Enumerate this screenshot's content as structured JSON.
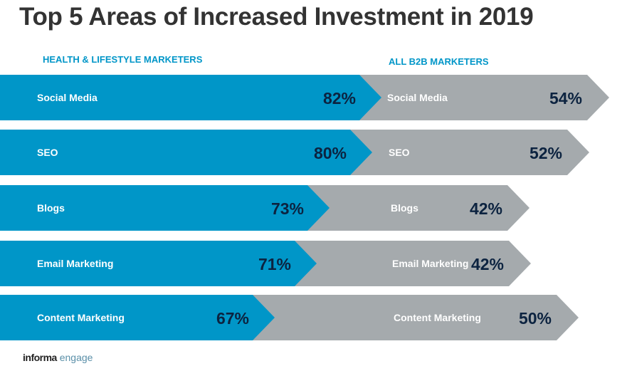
{
  "chart_data": {
    "type": "bar",
    "title": "Top 5 Areas of Increased Investment in 2019",
    "categories": [
      "Social Media",
      "SEO",
      "Blogs",
      "Email Marketing",
      "Content Marketing"
    ],
    "series": [
      {
        "name": "HEALTH & LIFESTYLE MARKETERS",
        "values": [
          82,
          80,
          73,
          71,
          67
        ],
        "color": "#0096c8"
      },
      {
        "name": "ALL B2B MARKETERS",
        "values": [
          54,
          52,
          42,
          42,
          50
        ],
        "color": "#a5aaad"
      }
    ],
    "unit": "%",
    "value_label_color": "#0c2340"
  },
  "footer": {
    "logo_bold": "informa",
    "logo_light": "engage"
  }
}
